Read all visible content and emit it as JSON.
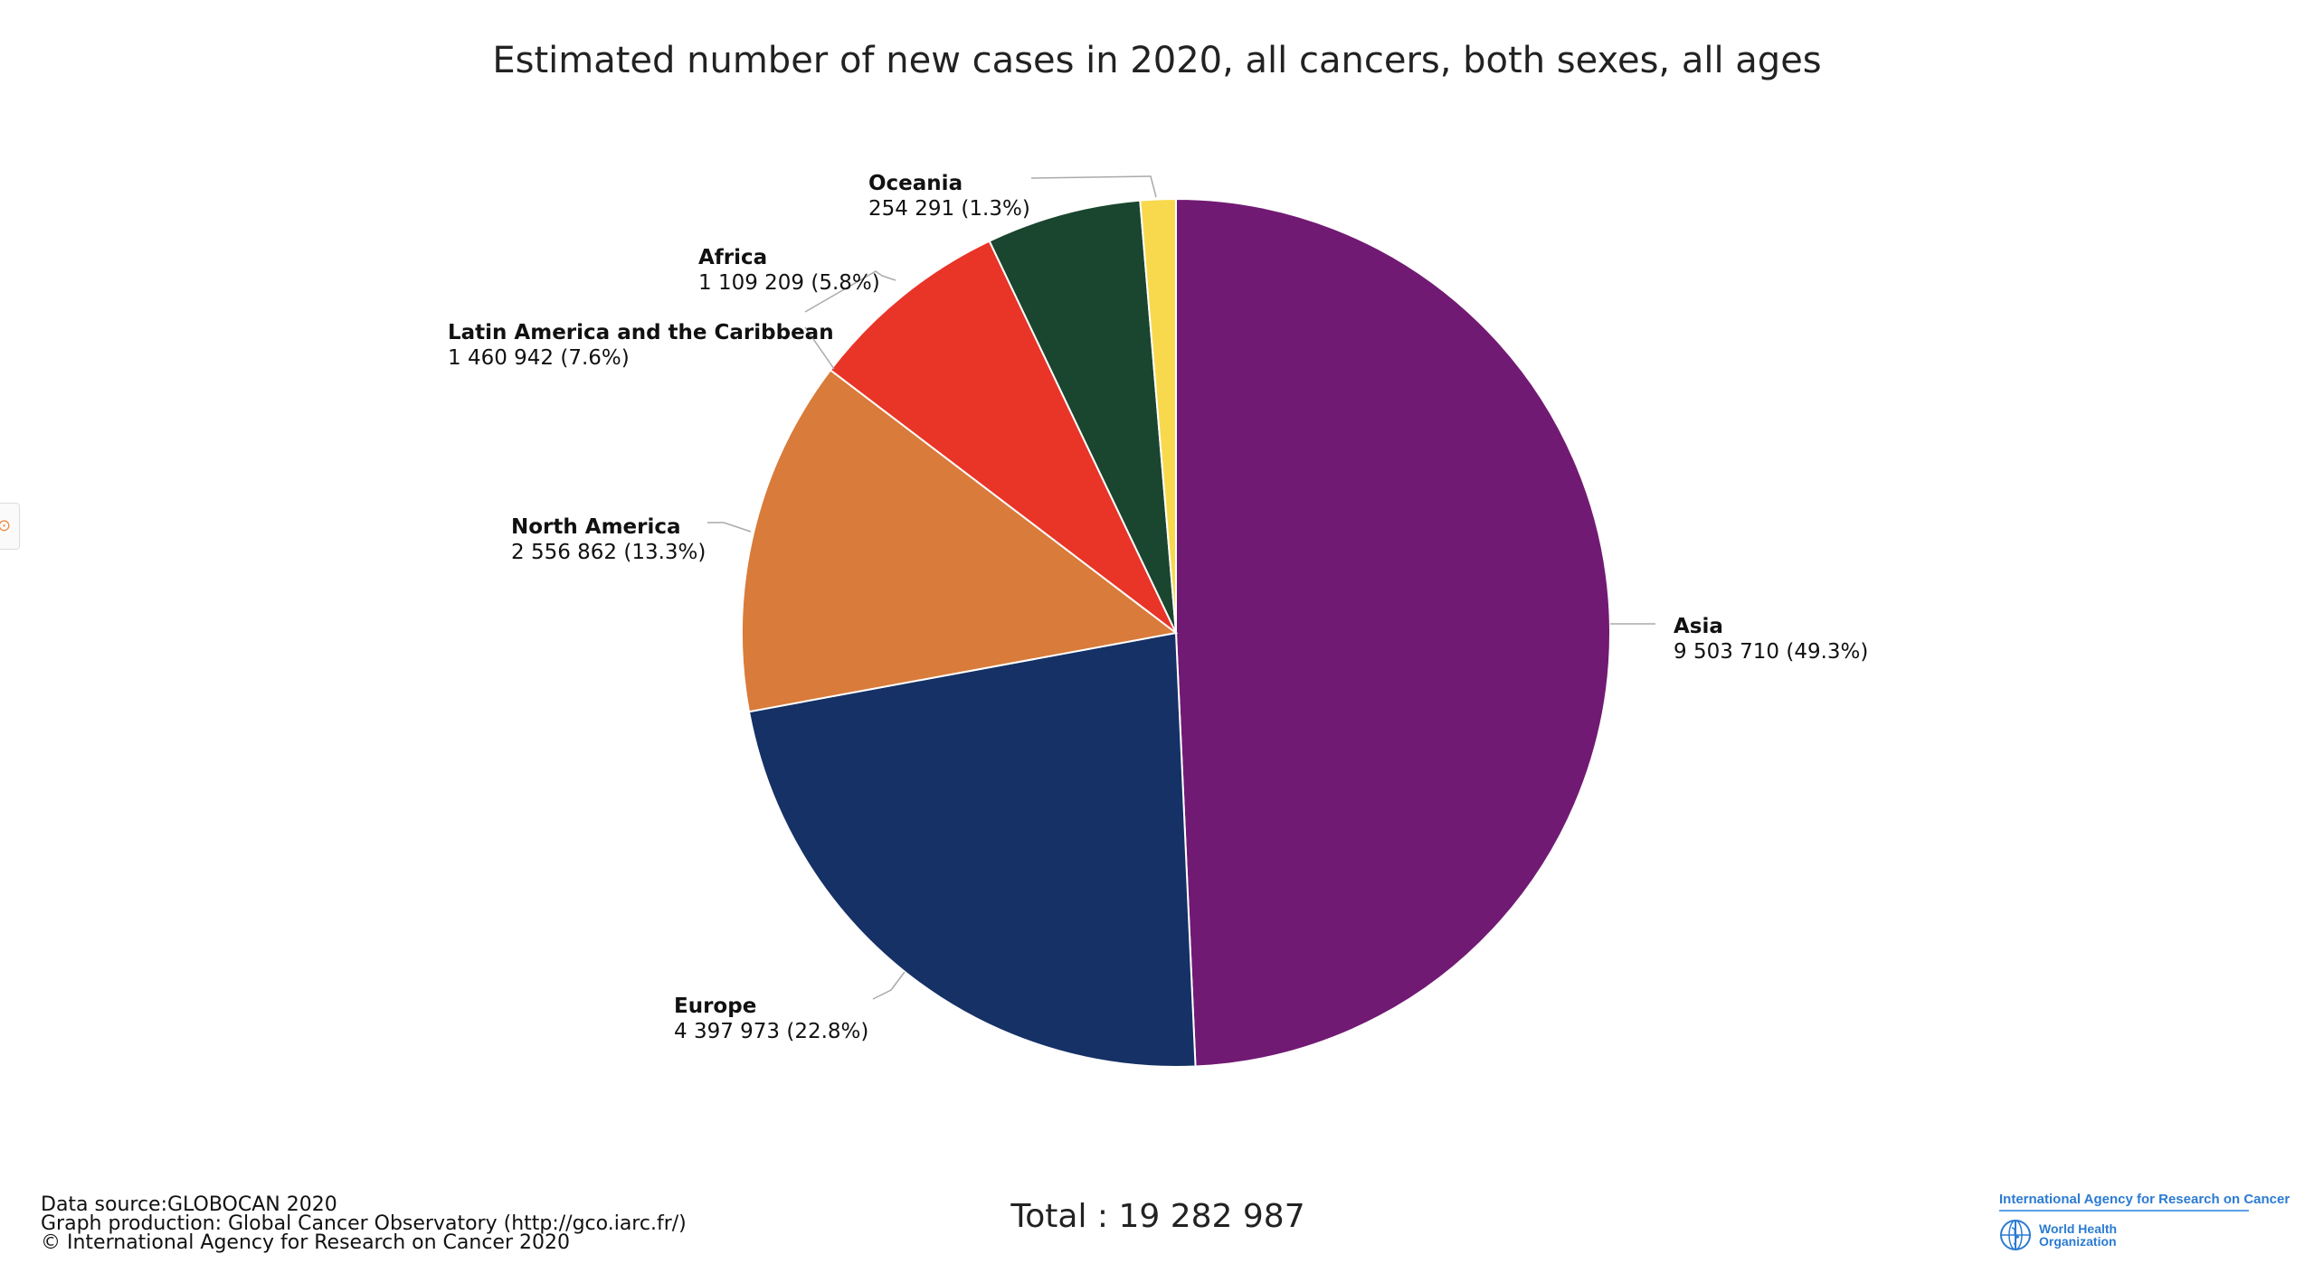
{
  "chart_data": {
    "type": "pie",
    "title": "Estimated number of new cases in 2020, all cancers, both sexes, all ages",
    "slices": [
      {
        "name": "Asia",
        "value": 9503710,
        "value_label": "9 503 710 (49.3%)",
        "color": "#711a73"
      },
      {
        "name": "Europe",
        "value": 4397973,
        "value_label": "4 397 973 (22.8%)",
        "color": "#153165"
      },
      {
        "name": "North America",
        "value": 2556862,
        "value_label": "2 556 862 (13.3%)",
        "color": "#d97b3a"
      },
      {
        "name": "Latin America and the Caribbean",
        "value": 1460942,
        "value_label": "1 460 942 (7.6%)",
        "color": "#e93428"
      },
      {
        "name": "Africa",
        "value": 1109209,
        "value_label": "1 109 209 (5.8%)",
        "color": "#1a452e"
      },
      {
        "name": "Oceania",
        "value": 254291,
        "value_label": "254 291 (1.3%)",
        "color": "#f8d94e"
      }
    ],
    "total_label": "Total : 19 282 987"
  },
  "credits": {
    "line1": "Data source:GLOBOCAN 2020",
    "line2": "Graph production: Global Cancer Observatory (http://gco.iarc.fr/)",
    "line3": "© International Agency for Research on Cancer 2020"
  },
  "logo": {
    "iarc": "International Agency for Research on Cancer",
    "who": "World Health Organization"
  }
}
